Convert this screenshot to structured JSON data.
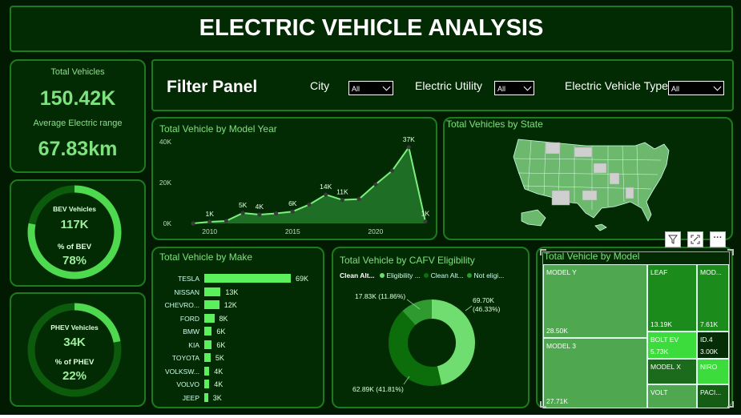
{
  "title": "ELECTRIC VEHICLE ANALYSIS",
  "kpis": {
    "total_vehicles_label": "Total Vehicles",
    "total_vehicles_value": "150.42K",
    "avg_range_label": "Average Electric range",
    "avg_range_value": "67.83km"
  },
  "bev": {
    "label": "BEV Vehicles",
    "value": "117K",
    "pct_label": "% of BEV",
    "pct_value": "78%",
    "fraction": 0.78
  },
  "phev": {
    "label": "PHEV Vehicles",
    "value": "34K",
    "pct_label": "% of PHEV",
    "pct_value": "22%",
    "fraction": 0.22
  },
  "filters": {
    "panel_title": "Filter Panel",
    "city_label": "City",
    "city_value": "All",
    "utility_label": "Electric Utility",
    "utility_value": "All",
    "type_label": "Electric Vehicle Type",
    "type_value": "All"
  },
  "year_chart": {
    "title": "Total Vehicle by Model Year"
  },
  "state_map": {
    "title": "Total Vehicles by State"
  },
  "make_chart": {
    "title": "Total Vehicle by Make"
  },
  "cafv_chart": {
    "title": "Total Vehicle by CAFV Eligibility",
    "legend_title": "Clean Alt...",
    "legend": [
      "Eligibility ...",
      "Clean Alt...",
      "Not eligi..."
    ],
    "labels": [
      "69.70K (46.33%)",
      "62.89K (41.81%)",
      "17.83K (11.86%)"
    ]
  },
  "model_chart": {
    "title": "Total Vehicle by Model"
  },
  "visual_header": {
    "icons": [
      "filter-icon",
      "focus-mode-icon",
      "more-options-icon"
    ]
  },
  "chart_data": [
    {
      "type": "area",
      "title": "Total Vehicle by Model Year",
      "x": [
        2009,
        2010,
        2011,
        2012,
        2013,
        2014,
        2015,
        2016,
        2017,
        2018,
        2019,
        2020,
        2021,
        2022,
        2023
      ],
      "y": [
        0.01,
        0.8,
        1.2,
        5.1,
        4.3,
        4.9,
        5.8,
        9.2,
        14.1,
        11.5,
        11.9,
        19.1,
        25.8,
        37.3,
        0.9
      ],
      "point_labels": [
        {
          "x": 2010,
          "label": "1K"
        },
        {
          "x": 2012,
          "label": "5K"
        },
        {
          "x": 2013,
          "label": "4K"
        },
        {
          "x": 2015,
          "label": "6K"
        },
        {
          "x": 2017,
          "label": "14K"
        },
        {
          "x": 2018,
          "label": "11K"
        },
        {
          "x": 2022,
          "label": "37K"
        },
        {
          "x": 2023,
          "label": "1K"
        }
      ],
      "y_ticks": [
        "0K",
        "20K",
        "40K"
      ],
      "x_ticks": [
        "2010",
        "2015",
        "2020"
      ],
      "ylim": [
        0,
        40000
      ],
      "color": "#7cf07c"
    },
    {
      "type": "bar",
      "title": "Total Vehicle by Make",
      "categories": [
        "TESLA",
        "NISSAN",
        "CHEVRO...",
        "FORD",
        "BMW",
        "KIA",
        "TOYOTA",
        "VOLKSW...",
        "VOLVO",
        "JEEP"
      ],
      "values": [
        69,
        13,
        12,
        8,
        6,
        6,
        5,
        4,
        4,
        3
      ],
      "value_labels": [
        "69K",
        "13K",
        "12K",
        "8K",
        "6K",
        "6K",
        "5K",
        "4K",
        "4K",
        "3K"
      ],
      "color": "#5cf05c"
    },
    {
      "type": "pie",
      "title": "Total Vehicle by CAFV Eligibility",
      "categories": [
        "Clean Alternative Fuel Vehicle Eligible",
        "Eligibility unknown as battery range has not been researched",
        "Not eligible due to low battery range"
      ],
      "values": [
        69.7,
        62.89,
        17.83
      ],
      "percents": [
        46.33,
        41.81,
        11.86
      ],
      "colors": [
        "#6fdd6f",
        "#0b6e0b",
        "#2f9a2f"
      ]
    },
    {
      "type": "heatmap",
      "title": "Total Vehicle by Model",
      "categories": [
        "MODEL Y",
        "MODEL 3",
        "LEAF",
        "MOD...",
        "BOLT EV",
        "ID.4",
        "MODEL X",
        "NIRO",
        "VOLT",
        "PACI..."
      ],
      "value_labels": [
        "28.50K",
        "27.71K",
        "13.19K",
        "7.61K",
        "5.73K",
        "3.00K",
        "",
        "",
        "",
        ""
      ]
    }
  ]
}
